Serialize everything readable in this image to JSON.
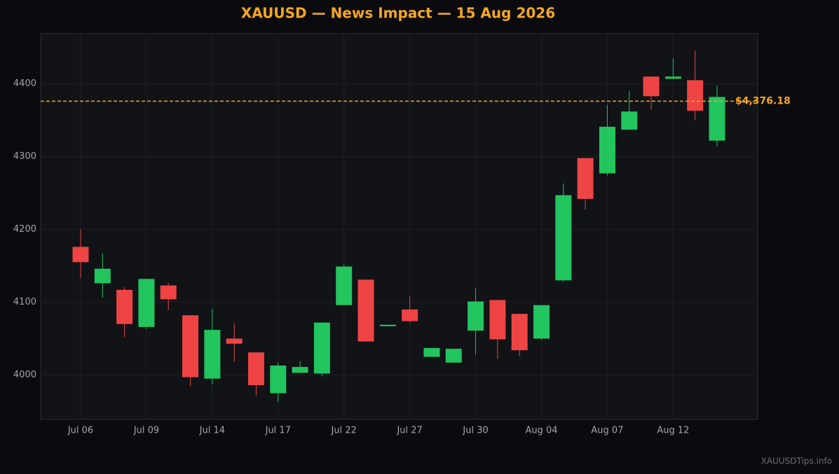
{
  "chart_data": {
    "type": "candlestick",
    "title": "XAUUSD — News Impact — 15 Aug 2026",
    "categories": [
      "Jul 06",
      null,
      null,
      "Jul 09",
      null,
      null,
      "Jul 14",
      null,
      null,
      "Jul 17",
      null,
      null,
      "Jul 22",
      null,
      null,
      "Jul 27",
      null,
      null,
      "Jul 30",
      null,
      null,
      "Aug 04",
      null,
      null,
      "Aug 07",
      null,
      null,
      "Aug 12",
      null,
      null
    ],
    "open": [
      4176,
      4126,
      4117,
      4066,
      4123,
      4082,
      3995,
      4050,
      4031,
      3975,
      4003,
      4002,
      4096,
      4131,
      4067,
      4090,
      4025,
      4017,
      4061,
      4103,
      4084,
      4050,
      4130,
      4298,
      4277,
      4337,
      4410,
      4407,
      4405,
      4322
    ],
    "high": [
      4200,
      4167,
      4121,
      4132,
      4126,
      4082,
      4091,
      4071,
      4031,
      4017,
      4019,
      4072,
      4152,
      4131,
      4069,
      4109,
      4037,
      4036,
      4119,
      4103,
      4084,
      4096,
      4263,
      4298,
      4371,
      4390,
      4410,
      4435,
      4446,
      4398
    ],
    "low": [
      4133,
      4106,
      4052,
      4063,
      4089,
      3985,
      3987,
      4018,
      3972,
      3963,
      4003,
      3998,
      4096,
      4046,
      4067,
      4072,
      4025,
      4017,
      4028,
      4022,
      4026,
      4048,
      4128,
      4227,
      4274,
      4337,
      4365,
      4407,
      4350,
      4314
    ],
    "close": [
      4155,
      4146,
      4070,
      4132,
      4104,
      3997,
      4062,
      4043,
      3986,
      4013,
      4011,
      4072,
      4149,
      4046,
      4069,
      4074,
      4037,
      4036,
      4101,
      4049,
      4034,
      4096,
      4247,
      4242,
      4341,
      4362,
      4383,
      4410,
      4363,
      4382
    ],
    "up_color": "#22c55e",
    "down_color": "#ef4444",
    "price_line": {
      "value": 4376.18,
      "label": "$4,376.18",
      "color": "#f5a623"
    },
    "ylim": [
      3939,
      4469
    ],
    "yticks": [
      4000,
      4100,
      4200,
      4300,
      4400
    ],
    "grid": true,
    "watermark": "XAUUSDTips.info"
  }
}
